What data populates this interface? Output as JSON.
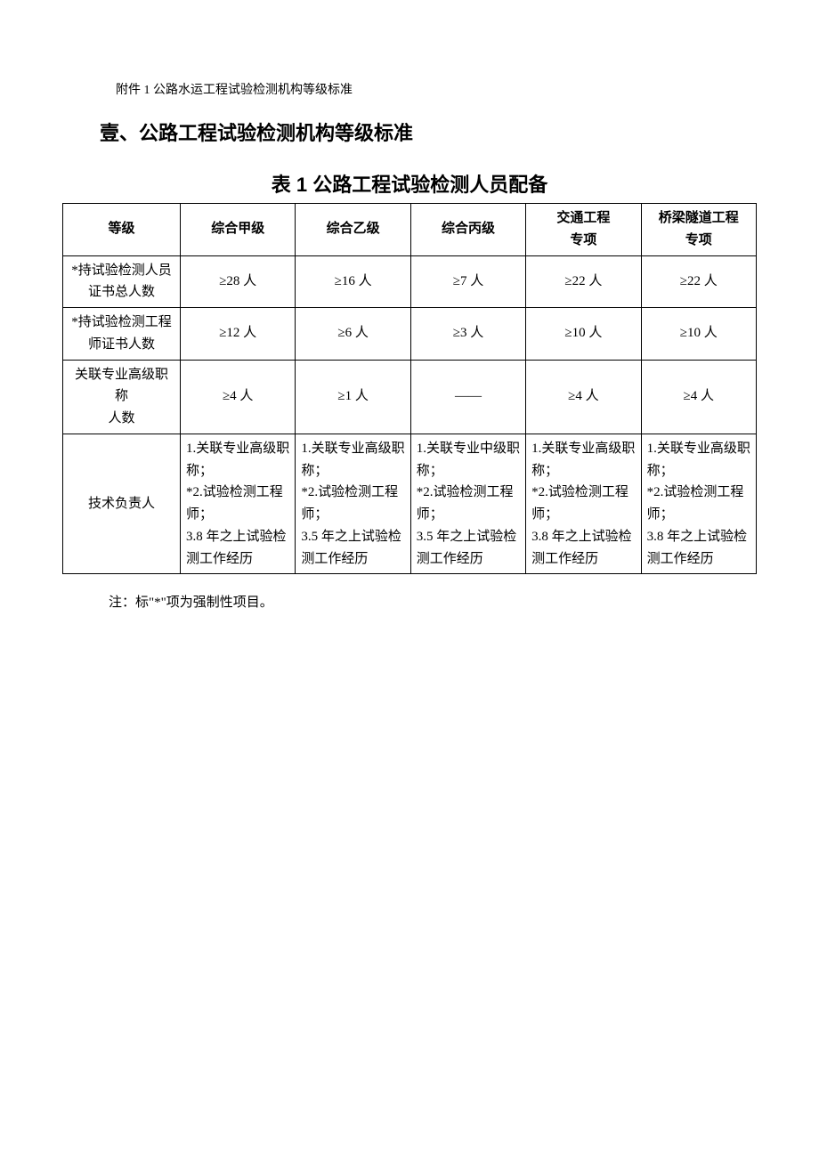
{
  "attachment_line": "附件 1 公路水运工程试验检测机构等级标准",
  "section_title": "壹、公路工程试验检测机构等级标准",
  "table_title": "表 1 公路工程试验检测人员配备",
  "columns": [
    "等级",
    "综合甲级",
    "综合乙级",
    "综合丙级",
    "交通工程专项",
    "桥梁隧道工程专项"
  ],
  "col4_line1": "交通工程",
  "col4_line2": "专项",
  "col5_line1": "桥梁隧道工程",
  "col5_line2": "专项",
  "rows": [
    {
      "label_line1": "*持试验检测人员",
      "label_line2": "证书总人数",
      "cells": [
        "≥28 人",
        "≥16 人",
        "≥7 人",
        "≥22 人",
        "≥22 人"
      ]
    },
    {
      "label_line1": "*持试验检测工程",
      "label_line2": "师证书人数",
      "cells": [
        "≥12 人",
        "≥6 人",
        "≥3 人",
        "≥10 人",
        "≥10 人"
      ]
    },
    {
      "label_line1": "关联专业高级职称",
      "label_line2": "人数",
      "cells": [
        "≥4 人",
        "≥1 人",
        "——",
        "≥4 人",
        "≥4 人"
      ]
    }
  ],
  "tech_row": {
    "label": "技术负责人",
    "cells": [
      "1.关联专业高级职称；\n*2.试验检测工程师；\n3.8 年之上试验检测工作经历",
      "1.关联专业高级职称；\n*2.试验检测工程师；\n3.5 年之上试验检测工作经历",
      "1.关联专业中级职称；\n*2.试验检测工程师；\n3.5 年之上试验检测工作经历",
      "1.关联专业高级职称；\n*2.试验检测工程师；\n3.8 年之上试验检测工作经历",
      "1.关联专业高级职称；\n*2.试验检测工程师；\n3.8 年之上试验检测工作经历"
    ]
  },
  "footnote": "注：标\"*\"项为强制性项目。"
}
